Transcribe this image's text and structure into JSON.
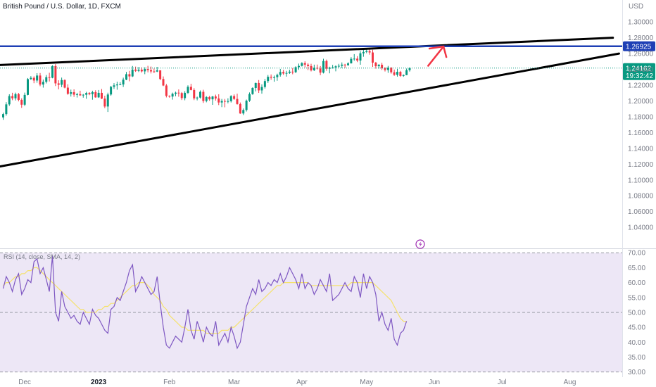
{
  "chart_data": {
    "type": "candlestick",
    "title": "British Pound / U.S. Dollar, 1D, FXCM",
    "currency": "USD",
    "price_axis": {
      "range": [
        1.025,
        1.31
      ],
      "ticks": [
        "1.30000",
        "1.28000",
        "1.26000",
        "1.24000",
        "1.22000",
        "1.20000",
        "1.18000",
        "1.16000",
        "1.14000",
        "1.12000",
        "1.10000",
        "1.08000",
        "1.06000",
        "1.04000"
      ]
    },
    "time_axis": {
      "labels": [
        "Dec",
        "2023",
        "Feb",
        "Mar",
        "Apr",
        "May",
        "Jun",
        "Jul",
        "Aug"
      ],
      "label_bars": [
        7,
        31,
        54,
        75,
        97,
        118,
        140,
        162,
        184
      ]
    },
    "candles_ohlc": [
      [
        1.1792,
        1.1852,
        1.1762,
        1.1834
      ],
      [
        1.1834,
        1.1985,
        1.1814,
        1.1957
      ],
      [
        1.1957,
        1.2085,
        1.1938,
        1.2062
      ],
      [
        1.2062,
        1.2104,
        1.201,
        1.2034
      ],
      [
        1.2034,
        1.2106,
        1.2007,
        1.2087
      ],
      [
        1.2087,
        1.2102,
        1.1995,
        1.2014
      ],
      [
        1.2014,
        1.2034,
        1.1913,
        1.1953
      ],
      [
        1.1953,
        1.2106,
        1.1936,
        1.2077
      ],
      [
        1.2077,
        1.2291,
        1.2071,
        1.2277
      ],
      [
        1.2277,
        1.2315,
        1.2267,
        1.2293
      ],
      [
        1.2293,
        1.2312,
        1.2225,
        1.2259
      ],
      [
        1.2259,
        1.2352,
        1.2231,
        1.2322
      ],
      [
        1.2322,
        1.2354,
        1.2187,
        1.2208
      ],
      [
        1.2208,
        1.2271,
        1.2169,
        1.2242
      ],
      [
        1.2242,
        1.2329,
        1.2222,
        1.2301
      ],
      [
        1.2301,
        1.2357,
        1.2247,
        1.2294
      ],
      [
        1.2294,
        1.2452,
        1.2287,
        1.2442
      ],
      [
        1.2442,
        1.2467,
        1.2189,
        1.2223
      ],
      [
        1.2223,
        1.2262,
        1.2147,
        1.2205
      ],
      [
        1.2205,
        1.2296,
        1.2175,
        1.2265
      ],
      [
        1.2265,
        1.2274,
        1.216,
        1.2169
      ],
      [
        1.2169,
        1.2211,
        1.2079,
        1.209
      ],
      [
        1.209,
        1.2144,
        1.2056,
        1.2111
      ],
      [
        1.2111,
        1.2147,
        1.2052,
        1.208
      ],
      [
        1.208,
        1.2104,
        1.2043,
        1.2086
      ],
      [
        1.2086,
        1.213,
        1.2065,
        1.2071
      ],
      [
        1.2071,
        1.2088,
        1.2042,
        1.2079
      ],
      [
        1.2079,
        1.2116,
        1.2028,
        1.2101
      ],
      [
        1.2101,
        1.2111,
        1.2074,
        1.2086
      ],
      [
        1.2086,
        1.213,
        1.2016,
        1.2112
      ],
      [
        1.2112,
        1.2136,
        1.2041,
        1.2046
      ],
      [
        1.2046,
        1.2139,
        1.2039,
        1.2103
      ],
      [
        1.2103,
        1.2151,
        1.2025,
        1.203
      ],
      [
        1.203,
        1.2067,
        1.1909,
        1.193
      ],
      [
        1.193,
        1.2105,
        1.1861,
        1.2082
      ],
      [
        1.2082,
        1.2192,
        1.2066,
        1.2179
      ],
      [
        1.2179,
        1.2226,
        1.2153,
        1.2198
      ],
      [
        1.2198,
        1.2244,
        1.2143,
        1.2209
      ],
      [
        1.2209,
        1.2238,
        1.2203,
        1.2209
      ],
      [
        1.2209,
        1.2295,
        1.2177,
        1.227
      ],
      [
        1.227,
        1.2367,
        1.2263,
        1.2339
      ],
      [
        1.2339,
        1.2381,
        1.2249,
        1.2311
      ],
      [
        1.2311,
        1.2443,
        1.2303,
        1.2397
      ],
      [
        1.2397,
        1.2435,
        1.2368,
        1.2381
      ],
      [
        1.2381,
        1.243,
        1.2366,
        1.2396
      ],
      [
        1.2396,
        1.2426,
        1.236,
        1.2375
      ],
      [
        1.2375,
        1.2426,
        1.2339,
        1.2405
      ],
      [
        1.2405,
        1.2445,
        1.2362,
        1.2391
      ],
      [
        1.2391,
        1.2437,
        1.2348,
        1.2374
      ],
      [
        1.2374,
        1.2411,
        1.2356,
        1.2372
      ],
      [
        1.2372,
        1.2432,
        1.2365,
        1.2388
      ],
      [
        1.2388,
        1.2389,
        1.2263,
        1.2278
      ],
      [
        1.2278,
        1.2311,
        1.2188,
        1.2196
      ],
      [
        1.2196,
        1.2215,
        1.2045,
        1.2065
      ],
      [
        1.2065,
        1.2071,
        1.2042,
        1.2056
      ],
      [
        1.2056,
        1.2106,
        1.2017,
        1.2091
      ],
      [
        1.2091,
        1.2118,
        1.206,
        1.2105
      ],
      [
        1.2105,
        1.2146,
        1.2054,
        1.21
      ],
      [
        1.21,
        1.2113,
        1.2012,
        1.2036
      ],
      [
        1.2036,
        1.2124,
        1.2009,
        1.2103
      ],
      [
        1.2103,
        1.2198,
        1.2089,
        1.2179
      ],
      [
        1.2179,
        1.2218,
        1.2134,
        1.2139
      ],
      [
        1.2139,
        1.2162,
        1.2011,
        1.2033
      ],
      [
        1.2033,
        1.2055,
        1.2008,
        1.2043
      ],
      [
        1.2043,
        1.2134,
        1.2031,
        1.2116
      ],
      [
        1.2116,
        1.2142,
        1.1975,
        1.2
      ],
      [
        1.2,
        1.2061,
        1.1983,
        1.205
      ],
      [
        1.205,
        1.2064,
        1.2003,
        1.2021
      ],
      [
        1.2021,
        1.2063,
        1.1951,
        1.2057
      ],
      [
        1.2057,
        1.208,
        1.2005,
        1.2032
      ],
      [
        1.2032,
        1.2085,
        1.1948,
        1.1981
      ],
      [
        1.1981,
        1.2026,
        1.1922,
        1.2
      ],
      [
        1.2,
        1.2026,
        1.192,
        1.1996
      ],
      [
        1.1996,
        1.2034,
        1.197,
        1.1998
      ],
      [
        1.1998,
        1.2073,
        1.1981,
        1.2062
      ],
      [
        1.2062,
        1.2083,
        1.2014,
        1.2026
      ],
      [
        1.2026,
        1.2092,
        1.1953,
        1.1961
      ],
      [
        1.1961,
        1.1981,
        1.1837,
        1.1842
      ],
      [
        1.1842,
        1.1905,
        1.1822,
        1.1886
      ],
      [
        1.1886,
        1.2018,
        1.1866,
        1.2004
      ],
      [
        1.2004,
        1.2108,
        1.1989,
        1.2087
      ],
      [
        1.2087,
        1.2173,
        1.2078,
        1.2165
      ],
      [
        1.2165,
        1.2232,
        1.2121,
        1.2228
      ],
      [
        1.2228,
        1.2265,
        1.2102,
        1.2134
      ],
      [
        1.2134,
        1.221,
        1.2092,
        1.2177
      ],
      [
        1.2177,
        1.2279,
        1.2157,
        1.2252
      ],
      [
        1.2252,
        1.2329,
        1.2228,
        1.2306
      ],
      [
        1.2306,
        1.2336,
        1.2268,
        1.2295
      ],
      [
        1.2295,
        1.2322,
        1.2244,
        1.2301
      ],
      [
        1.2301,
        1.2346,
        1.2256,
        1.233
      ],
      [
        1.233,
        1.2406,
        1.2308,
        1.2367
      ],
      [
        1.2367,
        1.2394,
        1.233,
        1.2348
      ],
      [
        1.2348,
        1.2381,
        1.2309,
        1.2355
      ],
      [
        1.2355,
        1.2396,
        1.2343,
        1.2371
      ],
      [
        1.2371,
        1.2417,
        1.2338,
        1.2365
      ],
      [
        1.2365,
        1.2439,
        1.2353,
        1.2428
      ],
      [
        1.2428,
        1.2473,
        1.2394,
        1.2444
      ],
      [
        1.2444,
        1.2491,
        1.2436,
        1.2479
      ],
      [
        1.2479,
        1.2502,
        1.2425,
        1.246
      ],
      [
        1.246,
        1.2478,
        1.2391,
        1.2442
      ],
      [
        1.2442,
        1.2471,
        1.2374,
        1.2388
      ],
      [
        1.2388,
        1.246,
        1.238,
        1.242
      ],
      [
        1.242,
        1.2461,
        1.2398,
        1.241
      ],
      [
        1.241,
        1.2442,
        1.2327,
        1.2359
      ],
      [
        1.2359,
        1.2535,
        1.2349,
        1.2506
      ],
      [
        1.2506,
        1.2524,
        1.2382,
        1.2408
      ],
      [
        1.2408,
        1.2434,
        1.235,
        1.2423
      ],
      [
        1.2423,
        1.2456,
        1.241,
        1.2424
      ],
      [
        1.2424,
        1.2451,
        1.2375,
        1.2439
      ],
      [
        1.2439,
        1.247,
        1.2421,
        1.2445
      ],
      [
        1.2445,
        1.2488,
        1.2415,
        1.246
      ],
      [
        1.246,
        1.247,
        1.2418,
        1.2452
      ],
      [
        1.2452,
        1.2491,
        1.2446,
        1.2476
      ],
      [
        1.2476,
        1.2555,
        1.2474,
        1.2533
      ],
      [
        1.2533,
        1.2593,
        1.2509,
        1.2536
      ],
      [
        1.2536,
        1.2567,
        1.2492,
        1.2512
      ],
      [
        1.2512,
        1.263,
        1.2459,
        1.2603
      ],
      [
        1.2603,
        1.2668,
        1.256,
        1.262
      ],
      [
        1.262,
        1.2671,
        1.2605,
        1.2632
      ],
      [
        1.2632,
        1.2658,
        1.2586,
        1.2614
      ],
      [
        1.2614,
        1.2648,
        1.2432,
        1.2485
      ],
      [
        1.2485,
        1.2495,
        1.2409,
        1.244
      ],
      [
        1.244,
        1.2467,
        1.241,
        1.2458
      ],
      [
        1.2458,
        1.2483,
        1.2393,
        1.2416
      ],
      [
        1.2416,
        1.2428,
        1.2373,
        1.2392
      ],
      [
        1.2392,
        1.2444,
        1.2356,
        1.2422
      ],
      [
        1.2422,
        1.2427,
        1.2346,
        1.2363
      ],
      [
        1.2363,
        1.2398,
        1.2318,
        1.2331
      ],
      [
        1.2331,
        1.2406,
        1.2308,
        1.2369
      ],
      [
        1.2369,
        1.2381,
        1.2306,
        1.2317
      ],
      [
        1.2317,
        1.2336,
        1.2306,
        1.2328
      ],
      [
        1.2328,
        1.2411,
        1.2326,
        1.239
      ],
      [
        1.239,
        1.2427,
        1.2372,
        1.2416
      ]
    ],
    "trendlines": [
      {
        "name": "upper-wedge-line",
        "from": {
          "bar": -4,
          "price": 1.245
        },
        "to": {
          "bar": 198,
          "price": 1.28
        },
        "color": "#000000"
      },
      {
        "name": "lower-wedge-line",
        "from": {
          "bar": -4,
          "price": 1.115
        },
        "to": {
          "bar": 200,
          "price": 1.26
        },
        "color": "#000000"
      }
    ],
    "horizontal_line": {
      "price": 1.26925,
      "label": "1.26925",
      "color": "#1e3fb5"
    },
    "arrow": {
      "color": "#f23645",
      "from": {
        "bar": 138,
        "price": 1.2445
      },
      "to": {
        "bar": 143,
        "price": 1.269
      }
    },
    "current_price": {
      "value": "1.24162",
      "countdown": "19:32:42",
      "color": "#089981"
    },
    "rsi": {
      "label": "RSI (14, close, SMA, 14, 2)",
      "range": [
        28.5,
        71
      ],
      "ticks": [
        "70.00",
        "65.00",
        "60.00",
        "55.00",
        "50.00",
        "45.00",
        "40.00",
        "35.00",
        "30.00"
      ],
      "levels": [
        70,
        50,
        30
      ],
      "rsi_values": [
        58,
        62,
        60,
        57,
        61,
        63,
        56,
        58,
        61,
        60,
        67,
        68,
        63,
        65,
        61,
        57,
        69,
        50,
        47,
        57,
        52,
        50,
        48,
        49,
        47,
        46,
        50,
        48,
        46,
        51,
        49,
        48,
        46,
        44,
        43,
        51,
        52,
        55,
        54,
        57,
        60,
        64,
        66,
        57,
        59,
        62,
        60,
        58,
        56,
        57,
        62,
        53,
        45,
        39,
        38,
        40,
        42,
        41,
        40,
        45,
        51,
        44,
        41,
        47,
        44,
        40,
        45,
        43,
        42,
        47,
        39,
        41,
        43,
        40,
        45,
        42,
        38,
        40,
        46,
        52,
        55,
        58,
        56,
        61,
        57,
        58,
        60,
        59,
        61,
        60,
        63,
        60,
        62,
        65,
        63,
        61,
        58,
        63,
        58,
        60,
        59,
        56,
        58,
        61,
        59,
        57,
        63,
        54,
        55,
        56,
        58,
        60,
        58,
        57,
        62,
        60,
        55,
        63,
        58,
        62,
        60,
        56,
        47,
        50,
        46,
        44,
        48,
        41,
        39,
        43,
        44,
        47
      ],
      "sma_values": [
        59,
        60,
        60,
        61,
        62,
        62,
        63,
        63,
        64,
        64,
        65,
        65,
        64,
        63,
        62,
        61,
        60,
        59,
        58,
        57,
        56,
        55,
        54,
        53,
        52,
        51,
        51,
        50,
        50,
        50,
        50,
        51,
        51,
        52,
        52,
        53,
        53,
        54,
        55,
        56,
        57,
        58,
        59,
        59,
        60,
        60,
        60,
        59,
        58,
        56,
        55,
        54,
        52,
        51,
        49,
        48,
        47,
        46,
        45,
        45,
        44,
        44,
        44,
        44,
        44,
        44,
        43,
        43,
        43,
        43,
        43,
        44,
        44,
        44,
        45,
        45,
        46,
        47,
        48,
        49,
        50,
        51,
        52,
        53,
        54,
        55,
        56,
        57,
        58,
        59,
        59,
        60,
        60,
        60,
        60,
        60,
        60,
        60,
        60,
        60,
        59,
        59,
        59,
        59,
        59,
        59,
        59,
        59,
        59,
        59,
        59,
        59,
        59,
        60,
        60,
        60,
        60,
        60,
        60,
        60,
        60,
        59,
        58,
        57,
        56,
        55,
        54,
        52,
        50,
        48,
        47,
        47
      ],
      "colors": {
        "rsi": "#7e57c2",
        "sma": "#f5e26b",
        "band": "#ede7f6"
      }
    }
  }
}
